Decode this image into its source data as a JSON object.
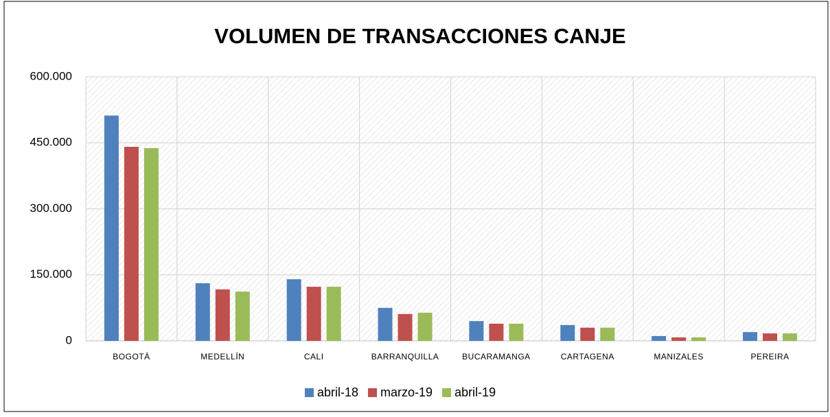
{
  "chart_data": {
    "type": "bar",
    "title": "VOLUMEN DE TRANSACCIONES CANJE",
    "categories": [
      "BOGOTÁ",
      "MEDELLÍN",
      "CALI",
      "BARRANQUILLA",
      "BUCARAMANGA",
      "CARTAGENA",
      "MANIZALES",
      "PEREIRA"
    ],
    "series": [
      {
        "name": "abril-18",
        "color": "#4f81bd",
        "values": [
          512000,
          131000,
          140000,
          75000,
          45000,
          36000,
          11000,
          20000
        ]
      },
      {
        "name": "marzo-19",
        "color": "#c0504d",
        "values": [
          441000,
          117000,
          123000,
          61000,
          39000,
          30000,
          8000,
          17000
        ]
      },
      {
        "name": "abril-19",
        "color": "#9bbb59",
        "values": [
          438000,
          112000,
          123000,
          64000,
          39000,
          30000,
          8000,
          17000
        ]
      }
    ],
    "ylim": [
      0,
      600000
    ],
    "yticks": [
      0,
      {
        "value": 150000,
        "label": "150.000"
      },
      {
        "value": 300000,
        "label": "300.000"
      },
      {
        "value": 450000,
        "label": "450.000"
      },
      {
        "value": 600000,
        "label": "600.000"
      }
    ],
    "grid": true,
    "legend": "bottom"
  }
}
